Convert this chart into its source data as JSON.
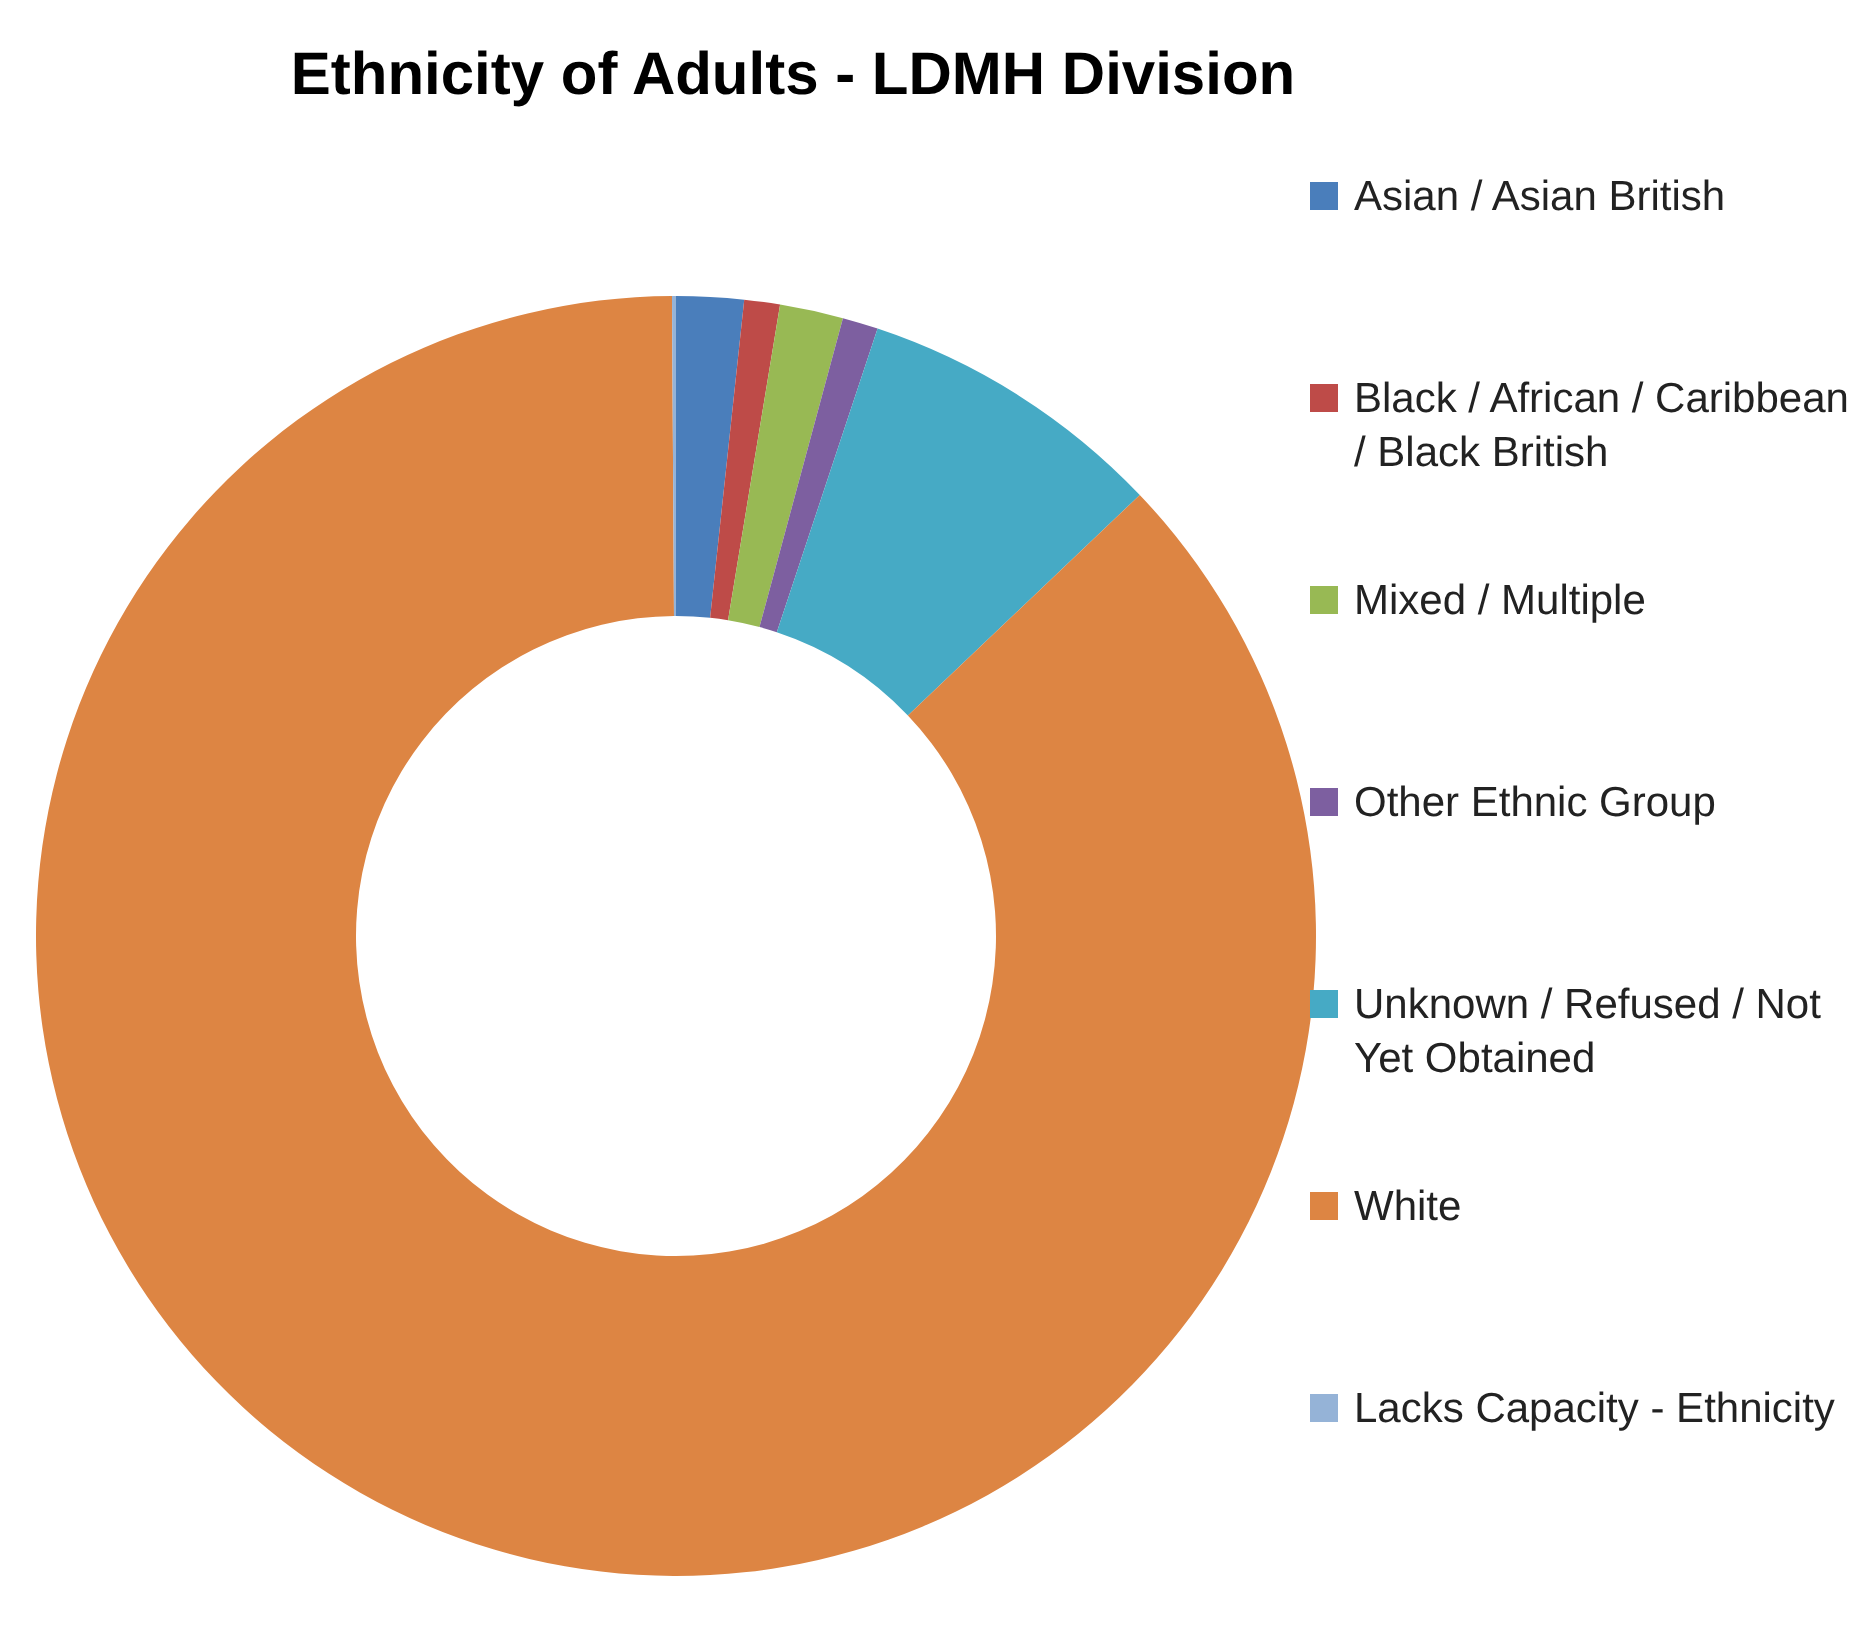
{
  "chart_data": {
    "type": "donut",
    "title": "Ethnicity of Adults -  LDMH Division",
    "categories": [
      "Asian / Asian British",
      "Black / African / Caribbean / Black British",
      "Mixed / Multiple",
      "Other Ethnic Group",
      "Unknown / Refused / Not Yet Obtained",
      "White",
      "Lacks Capacity - Ethnicity"
    ],
    "values": [
      1.7,
      0.9,
      1.6,
      0.9,
      7.8,
      87.0,
      0.1
    ],
    "colors": [
      "#4a7ebb",
      "#be4b48",
      "#98b954",
      "#7d5fa0",
      "#46aac5",
      "#dd8543",
      "#95b3d7"
    ],
    "legend": "right"
  }
}
